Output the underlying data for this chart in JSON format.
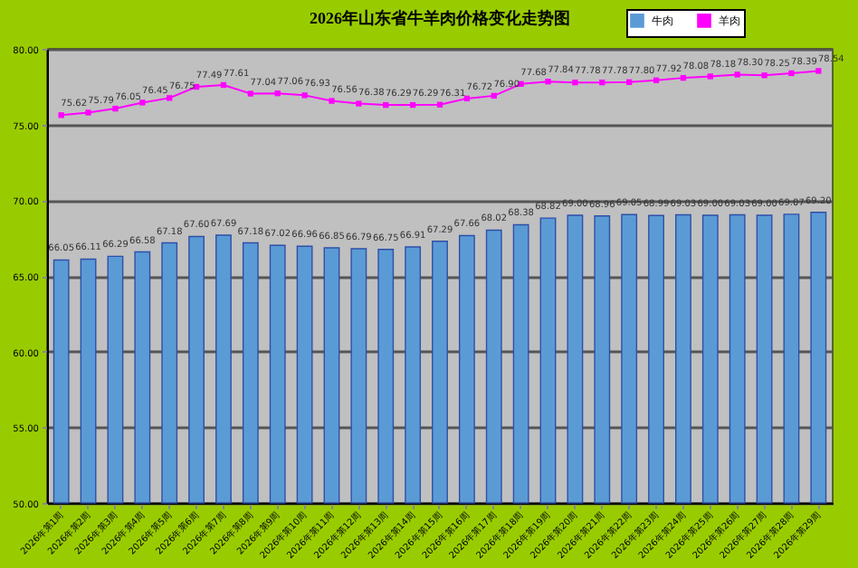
{
  "chart_data": {
    "type": "bar",
    "title": "2026年山东省牛羊肉价格变化走势图",
    "categories": [
      "2026年第1周",
      "2026年第2周",
      "2026年第3周",
      "2026年第4周",
      "2026年第5周",
      "2026年第6周",
      "2026年第7周",
      "2026年第8周",
      "2026年第9周",
      "2026年第10周",
      "2026年第11周",
      "2026年第12周",
      "2026年第13周",
      "2026年第14周",
      "2026年第15周",
      "2026年第16周",
      "2026年第17周",
      "2026年第18周",
      "2026年第19周",
      "2026年第20周",
      "2026年第21周",
      "2026年第22周",
      "2026年第23周",
      "2026年第24周",
      "2026年第25周",
      "2026年第26周",
      "2026年第27周",
      "2026年第28周",
      "2026年第29周"
    ],
    "series": [
      {
        "name": "牛肉",
        "color": "#5b9bd5",
        "values": [
          66.05,
          66.11,
          66.29,
          66.58,
          67.18,
          67.6,
          67.69,
          67.18,
          67.02,
          66.96,
          66.85,
          66.79,
          66.75,
          66.91,
          67.29,
          67.66,
          68.02,
          68.38,
          68.82,
          69.0,
          68.96,
          69.05,
          68.99,
          69.03,
          69.0,
          69.03,
          69.0,
          69.07,
          69.2
        ],
        "value_labels": [
          "66.05",
          "66.11",
          "66.29",
          "66.58",
          "67.18",
          "67.60",
          "67.69",
          "67.18",
          "67.02",
          "66.96",
          "66.85",
          "66.79",
          "66.75",
          "66.91",
          "67.29",
          "67.66",
          "68.02",
          "68.38",
          "68.82",
          "69.00",
          "68.96",
          "69.05",
          "68.99",
          "69.03",
          "69.00",
          "69.03",
          "69.00",
          "69.07",
          "69.20"
        ]
      },
      {
        "name": "羊肉",
        "type": "line",
        "color": "#ff00ff",
        "values": [
          75.62,
          75.79,
          76.05,
          76.45,
          76.75,
          77.49,
          77.61,
          77.04,
          77.06,
          76.93,
          76.56,
          76.38,
          76.29,
          76.29,
          76.31,
          76.72,
          76.9,
          77.68,
          77.84,
          77.78,
          77.78,
          77.8,
          77.92,
          78.08,
          78.18,
          78.3,
          78.25,
          78.39,
          78.54
        ],
        "value_labels": [
          "75.62",
          "75.79",
          "76.05",
          "76.45",
          "76.75",
          "77.49",
          "77.61",
          "77.04",
          "77.06",
          "76.93",
          "76.56",
          "76.38",
          "76.29",
          "76.29",
          "76.31",
          "76.72",
          "76.90",
          "77.68",
          "77.84",
          "77.78",
          "77.78",
          "77.80",
          "77.92",
          "78.08",
          "78.18",
          "78.30",
          "78.25",
          "78.39",
          "78.54"
        ]
      }
    ],
    "ylim": [
      50,
      80
    ],
    "yticks": [
      {
        "value": 50,
        "label": "50.00"
      },
      {
        "value": 55,
        "label": "55.00"
      },
      {
        "value": 60,
        "label": "60.00"
      },
      {
        "value": 65,
        "label": "65.00"
      },
      {
        "value": 70,
        "label": "70.00"
      },
      {
        "value": 75,
        "label": "75.00"
      },
      {
        "value": 80,
        "label": "80.00"
      }
    ],
    "grid": "y",
    "legend": "top right",
    "marker": "square",
    "line_style": "solid"
  }
}
